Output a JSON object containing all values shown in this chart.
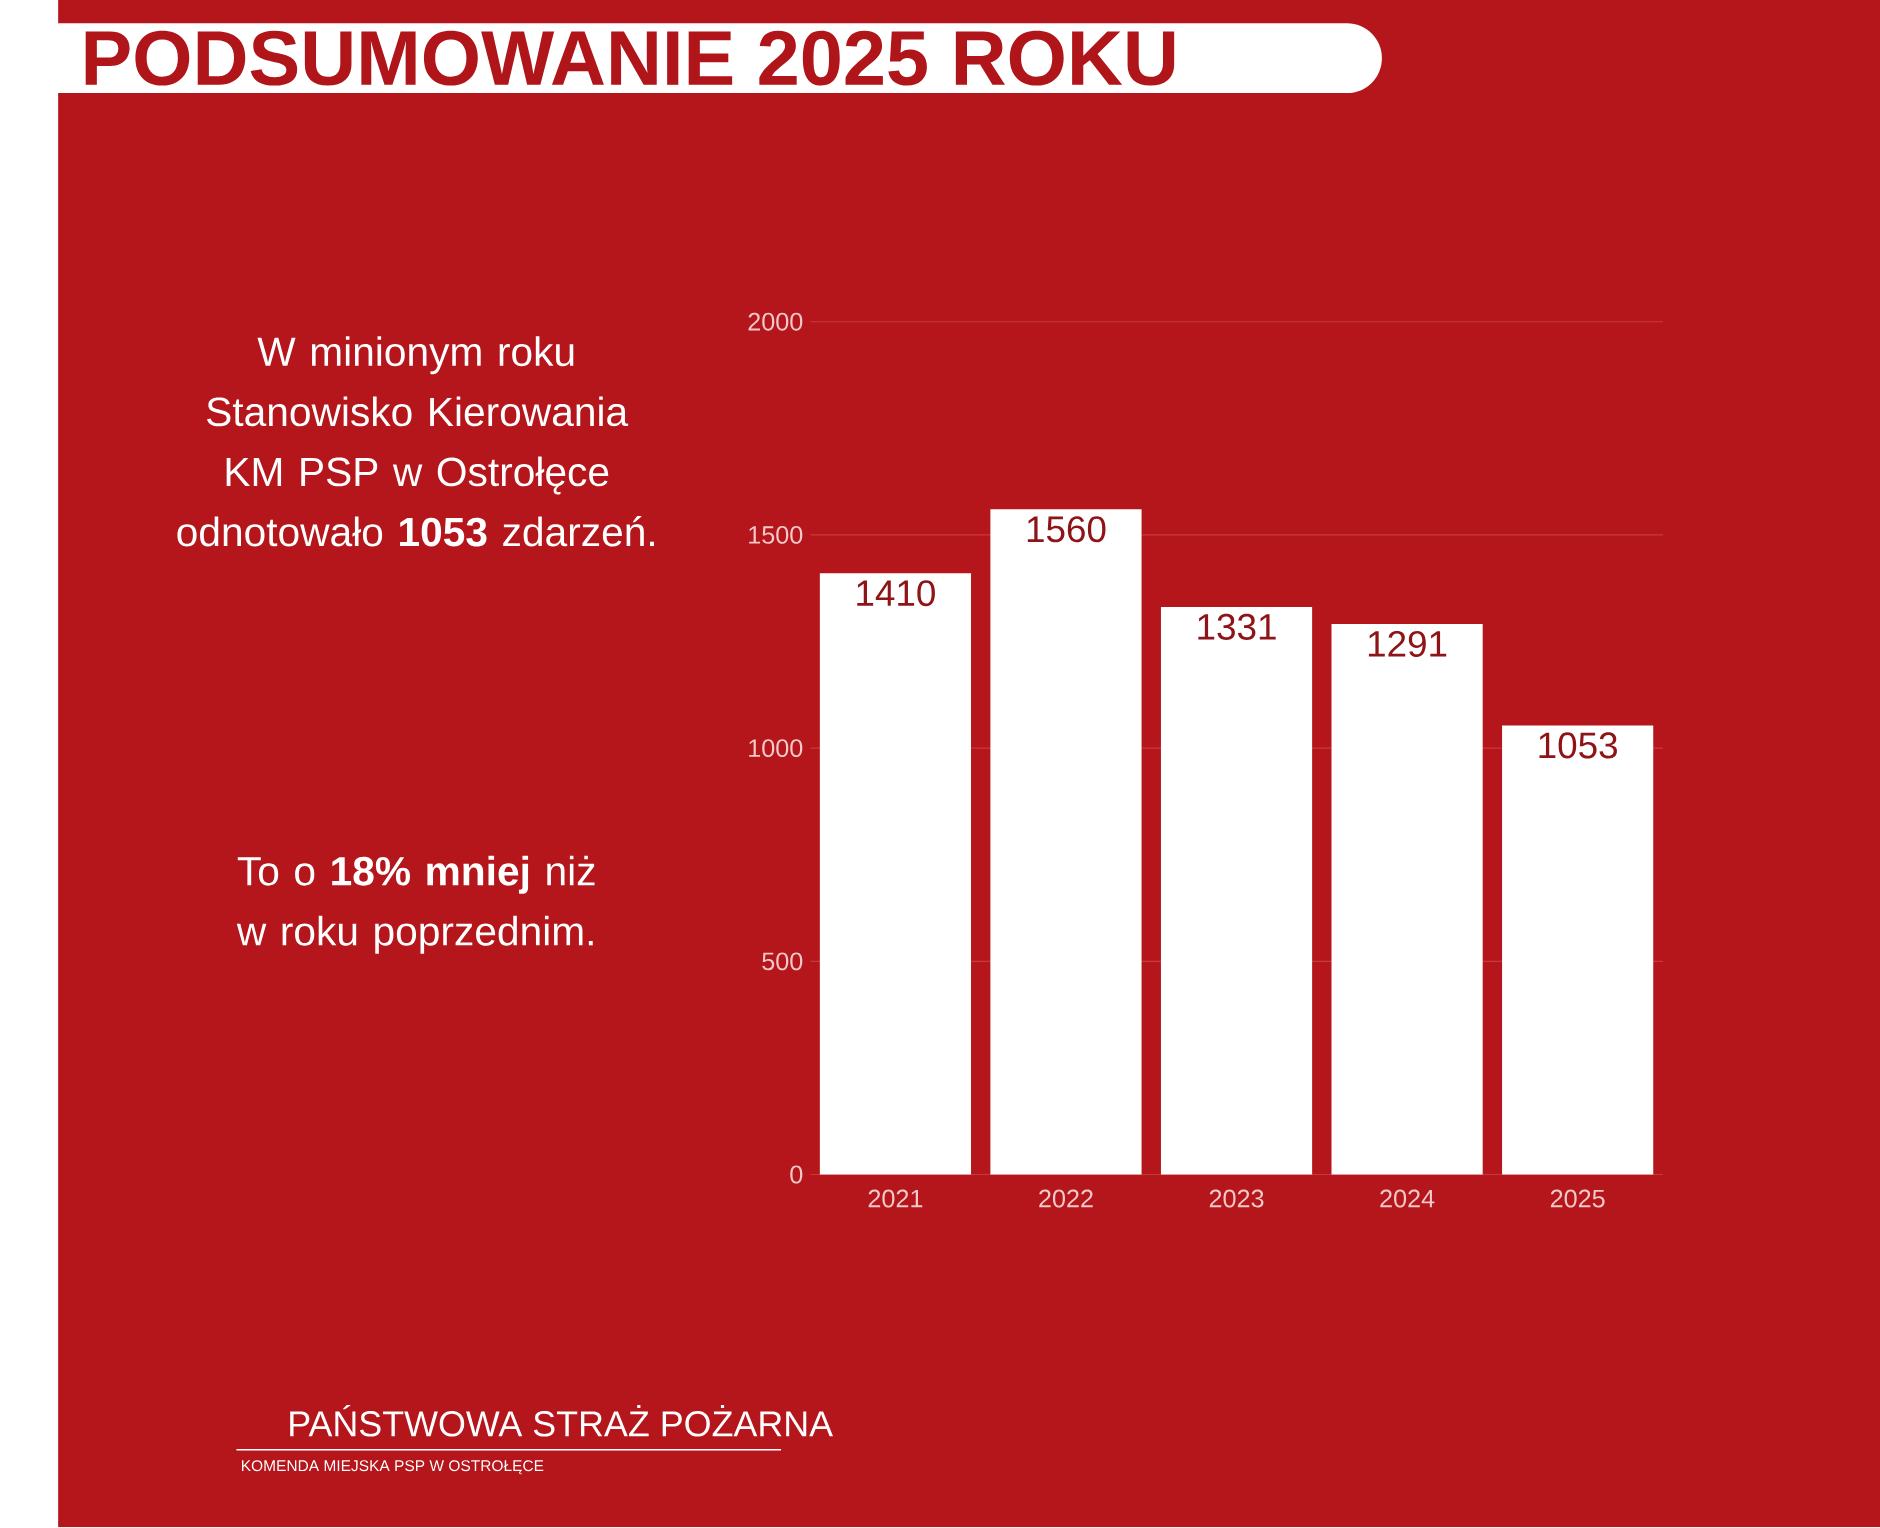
{
  "chart_data": {
    "type": "bar",
    "title": "PODSUMOWANIE 2025 ROKU",
    "categories": [
      "2021",
      "2022",
      "2023",
      "2024",
      "2025"
    ],
    "values": [
      1410,
      1560,
      1331,
      1291,
      1053
    ],
    "color": "#ffffff",
    "ylim": [
      0,
      2000
    ],
    "yticks": [
      0,
      500,
      1000,
      1500,
      2000
    ],
    "grid": "y",
    "data_labels": true,
    "annotations": [
      "W minionym roku Stanowisko Kierowania KM PSP w Ostrołęce odnotowało **1053** zdarzeń.",
      "To o **18% mniej** niż w roku poprzednim.",
      "PAŃSTWOWA STRAŻ POŻARNA",
      "KOMENDA MIEJSKA PSP W OSTROŁĘCE"
    ]
  }
}
